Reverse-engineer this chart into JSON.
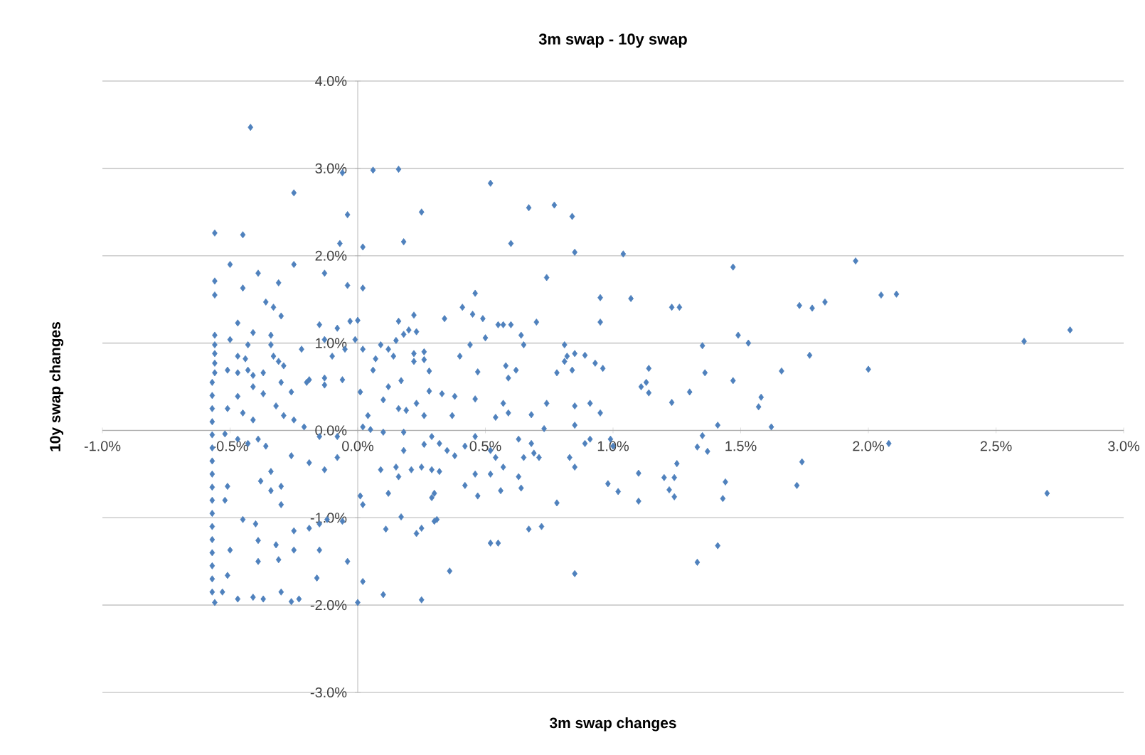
{
  "chart_data": {
    "type": "scatter",
    "title": "3m swap - 10y swap",
    "xlabel": "3m swap changes",
    "ylabel": "10y swap changes",
    "color": "#4f81bd",
    "marker": "diamond",
    "grid": "y",
    "xlim": [
      -1,
      3
    ],
    "ylim": [
      -3,
      4
    ],
    "xticks": [
      {
        "value": -1,
        "label": "-1.0%"
      },
      {
        "value": -0.5,
        "label": "-0.5%"
      },
      {
        "value": 0,
        "label": "0.0%"
      },
      {
        "value": 0.5,
        "label": "0.5%"
      },
      {
        "value": 1,
        "label": "1.0%"
      },
      {
        "value": 1.5,
        "label": "1.5%"
      },
      {
        "value": 2,
        "label": "2.0%"
      },
      {
        "value": 2.5,
        "label": "2.5%"
      },
      {
        "value": 3,
        "label": "3.0%"
      }
    ],
    "yticks": [
      {
        "value": -3,
        "label": "-3.0%"
      },
      {
        "value": -2,
        "label": "-2.0%"
      },
      {
        "value": -1,
        "label": "-1.0%"
      },
      {
        "value": 0,
        "label": "0.0%"
      },
      {
        "value": 1,
        "label": "1.0%"
      },
      {
        "value": 2,
        "label": "2.0%"
      },
      {
        "value": 3,
        "label": "3.0%"
      },
      {
        "value": 4,
        "label": "4.0%"
      }
    ],
    "x": [
      1.04,
      1.47,
      1.95,
      1.07,
      1.23,
      1.26,
      1.73,
      1.78,
      1.83,
      2.05,
      2.11,
      2.79,
      2.61,
      1.49,
      1.53,
      1.35,
      1.77,
      1.14,
      1.36,
      2.0,
      1.66,
      1.13,
      1.11,
      1.47,
      1.14,
      1.3,
      1.58,
      1.57,
      1.23,
      1.41,
      1.62,
      1.35,
      1.33,
      1.37,
      2.08,
      1.74,
      1.25,
      1.1,
      1.2,
      1.24,
      1.22,
      1.24,
      1.44,
      1.72,
      1.1,
      1.43,
      2.7,
      1.41,
      1.33,
      0.06,
      0.16,
      0.52,
      0.25,
      0.67,
      0.77,
      0.84,
      0.02,
      0.18,
      0.6,
      0.85,
      0.74,
      0.02,
      0.46,
      0.41,
      0.95,
      0.45,
      0.49,
      0.34,
      0.22,
      0.16,
      0.0,
      0.2,
      0.23,
      0.18,
      0.55,
      0.57,
      0.6,
      0.7,
      0.95,
      0.64,
      0.65,
      0.5,
      -0.01,
      0.02,
      0.09,
      0.12,
      0.14,
      0.15,
      0.22,
      0.26,
      0.22,
      0.26,
      0.44,
      0.4,
      0.07,
      0.06,
      0.28,
      0.47,
      0.58,
      0.62,
      0.81,
      0.82,
      0.81,
      0.85,
      0.89,
      0.93,
      0.96,
      0.78,
      0.84,
      0.17,
      0.59,
      0.01,
      0.12,
      0.1,
      0.28,
      0.33,
      0.38,
      0.16,
      0.19,
      0.23,
      0.26,
      0.46,
      0.57,
      0.59,
      0.54,
      0.68,
      0.74,
      0.85,
      0.91,
      0.95,
      0.04,
      0.02,
      0.05,
      0.1,
      0.37,
      0.18,
      0.73,
      0.85,
      0.29,
      0.32,
      0.35,
      0.38,
      0.26,
      0.18,
      0.42,
      0.46,
      0.52,
      0.54,
      0.63,
      0.68,
      0.69,
      0.71,
      0.65,
      0.83,
      0.85,
      0.89,
      0.91,
      0.99,
      1.0,
      0.09,
      0.15,
      0.16,
      0.21,
      0.25,
      0.29,
      0.32,
      0.46,
      0.52,
      0.57,
      0.63,
      0.12,
      0.01,
      0.29,
      0.3,
      0.42,
      0.47,
      0.56,
      0.64,
      0.78,
      0.98,
      1.02,
      0.02,
      0.17,
      0.3,
      0.31,
      0.25,
      0.23,
      0.11,
      0.52,
      0.55,
      0.67,
      0.72,
      0.02,
      0.36,
      0.85,
      0.1,
      0.25,
      0.0,
      -0.42,
      -0.06,
      -0.25,
      -0.04,
      -0.56,
      -0.45,
      -0.07,
      -0.5,
      -0.25,
      -0.56,
      -0.39,
      -0.13,
      -0.56,
      -0.45,
      -0.31,
      -0.04,
      -0.36,
      -0.33,
      -0.3,
      -0.47,
      -0.41,
      -0.34,
      -0.15,
      -0.08,
      -0.03,
      -0.56,
      -0.56,
      -0.56,
      -0.56,
      -0.56,
      -0.5,
      -0.43,
      -0.34,
      -0.22,
      -0.13,
      -0.47,
      -0.44,
      -0.33,
      -0.31,
      -0.29,
      -0.1,
      -0.05,
      -0.51,
      -0.47,
      -0.43,
      -0.41,
      -0.37,
      -0.19,
      -0.13,
      -0.57,
      -0.57,
      -0.57,
      -0.57,
      -0.57,
      -0.57,
      -0.57,
      -0.57,
      -0.57,
      -0.57,
      -0.57,
      -0.57,
      -0.57,
      -0.57,
      -0.57,
      -0.57,
      -0.57,
      -0.47,
      -0.41,
      -0.37,
      -0.3,
      -0.26,
      -0.2,
      -0.13,
      -0.06,
      -0.32,
      -0.29,
      -0.25,
      -0.21,
      -0.51,
      -0.45,
      -0.41,
      -0.52,
      -0.47,
      -0.43,
      -0.39,
      -0.36,
      -0.15,
      -0.08,
      -0.26,
      -0.19,
      -0.13,
      -0.08,
      -0.34,
      -0.38,
      -0.34,
      -0.3,
      -0.51,
      -0.52,
      -0.45,
      -0.4,
      -0.3,
      -0.25,
      -0.19,
      -0.15,
      -0.12,
      -0.06,
      -0.39,
      -0.32,
      -0.25,
      -0.5,
      -0.39,
      -0.31,
      -0.15,
      -0.04,
      -0.51,
      -0.16,
      -0.53,
      -0.47,
      -0.41,
      -0.37,
      -0.3,
      -0.23,
      -0.26,
      -0.56
    ],
    "values": [
      2.02,
      1.87,
      1.94,
      1.51,
      1.41,
      1.41,
      1.43,
      1.4,
      1.47,
      1.55,
      1.56,
      1.15,
      1.02,
      1.09,
      1.0,
      0.97,
      0.86,
      0.71,
      0.66,
      0.7,
      0.68,
      0.55,
      0.5,
      0.57,
      0.43,
      0.44,
      0.38,
      0.27,
      0.32,
      0.06,
      0.04,
      -0.06,
      -0.19,
      -0.24,
      -0.15,
      -0.36,
      -0.38,
      -0.49,
      -0.54,
      -0.54,
      -0.68,
      -0.76,
      -0.59,
      -0.63,
      -0.81,
      -0.78,
      -0.72,
      -1.32,
      -1.51,
      2.98,
      2.99,
      2.83,
      2.5,
      2.55,
      2.58,
      2.45,
      2.1,
      2.16,
      2.14,
      2.04,
      1.75,
      1.63,
      1.57,
      1.41,
      1.52,
      1.33,
      1.28,
      1.28,
      1.32,
      1.25,
      1.26,
      1.15,
      1.13,
      1.1,
      1.21,
      1.21,
      1.21,
      1.24,
      1.24,
      1.09,
      0.98,
      1.06,
      1.04,
      0.93,
      0.98,
      0.93,
      0.85,
      1.03,
      0.88,
      0.9,
      0.79,
      0.81,
      0.98,
      0.85,
      0.82,
      0.69,
      0.68,
      0.67,
      0.74,
      0.69,
      0.98,
      0.85,
      0.79,
      0.88,
      0.86,
      0.77,
      0.71,
      0.66,
      0.69,
      0.57,
      0.6,
      0.44,
      0.5,
      0.35,
      0.45,
      0.42,
      0.39,
      0.25,
      0.23,
      0.31,
      0.17,
      0.36,
      0.31,
      0.2,
      0.15,
      0.18,
      0.31,
      0.28,
      0.31,
      0.2,
      0.17,
      0.04,
      0.01,
      -0.02,
      0.17,
      -0.02,
      0.02,
      0.06,
      -0.07,
      -0.15,
      -0.23,
      -0.29,
      -0.16,
      -0.23,
      -0.18,
      -0.07,
      -0.23,
      -0.31,
      -0.1,
      -0.15,
      -0.26,
      -0.31,
      -0.31,
      -0.31,
      -0.42,
      -0.15,
      -0.1,
      -0.1,
      -0.18,
      -0.45,
      -0.42,
      -0.53,
      -0.45,
      -0.42,
      -0.45,
      -0.47,
      -0.5,
      -0.5,
      -0.42,
      -0.53,
      -0.72,
      -0.75,
      -0.77,
      -0.72,
      -0.63,
      -0.75,
      -0.69,
      -0.66,
      -0.83,
      -0.61,
      -0.7,
      -0.85,
      -0.99,
      -1.04,
      -1.02,
      -1.12,
      -1.18,
      -1.13,
      -1.29,
      -1.29,
      -1.13,
      -1.1,
      -1.73,
      -1.61,
      -1.64,
      -1.88,
      -1.94,
      -1.97,
      3.47,
      2.95,
      2.72,
      2.47,
      2.26,
      2.24,
      2.14,
      1.9,
      1.9,
      1.71,
      1.8,
      1.8,
      1.55,
      1.63,
      1.69,
      1.66,
      1.47,
      1.41,
      1.31,
      1.23,
      1.12,
      1.09,
      1.21,
      1.17,
      1.25,
      1.09,
      0.98,
      0.88,
      0.77,
      0.66,
      1.04,
      0.98,
      0.98,
      0.93,
      1.04,
      0.85,
      0.82,
      0.85,
      0.79,
      0.74,
      0.85,
      0.93,
      0.69,
      0.66,
      0.69,
      0.63,
      0.66,
      0.58,
      0.6,
      0.55,
      0.4,
      0.25,
      0.1,
      -0.05,
      -0.2,
      -0.35,
      -0.5,
      -0.65,
      -0.8,
      -0.95,
      -1.1,
      -1.25,
      -1.4,
      -1.55,
      -1.7,
      -1.85,
      0.39,
      0.5,
      0.42,
      0.55,
      0.44,
      0.55,
      0.52,
      0.58,
      0.28,
      0.17,
      0.12,
      0.04,
      0.25,
      0.2,
      0.12,
      -0.04,
      -0.1,
      -0.15,
      -0.1,
      -0.18,
      -0.07,
      -0.07,
      -0.29,
      -0.37,
      -0.45,
      -0.31,
      -0.47,
      -0.58,
      -0.69,
      -0.64,
      -0.64,
      -0.8,
      -1.02,
      -1.07,
      -0.85,
      -1.15,
      -1.12,
      -1.07,
      -1.02,
      -1.04,
      -1.26,
      -1.31,
      -1.37,
      -1.37,
      -1.5,
      -1.48,
      -1.37,
      -1.5,
      -1.66,
      -1.69,
      -1.85,
      -1.93,
      -1.91,
      -1.93,
      -1.85,
      -1.93,
      -1.96,
      -1.97
    ]
  }
}
